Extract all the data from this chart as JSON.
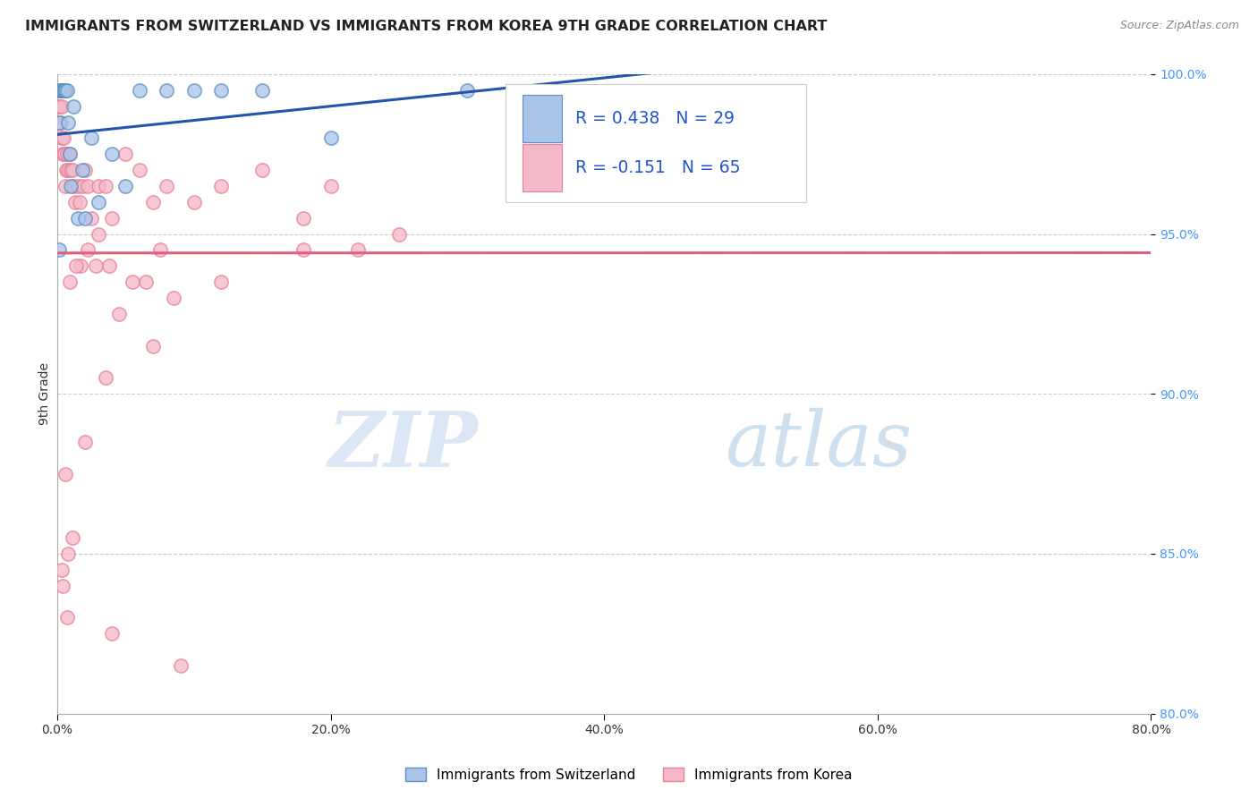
{
  "title": "IMMIGRANTS FROM SWITZERLAND VS IMMIGRANTS FROM KOREA 9TH GRADE CORRELATION CHART",
  "source_text": "Source: ZipAtlas.com",
  "ylabel": "9th Grade",
  "watermark_zip": "ZIP",
  "watermark_atlas": "atlas",
  "xlim": [
    0.0,
    80.0
  ],
  "ylim": [
    80.0,
    100.0
  ],
  "xticks": [
    0.0,
    20.0,
    40.0,
    60.0,
    80.0
  ],
  "yticks": [
    80.0,
    85.0,
    90.0,
    95.0,
    100.0
  ],
  "swiss_color": "#aac4e8",
  "swiss_edge_color": "#5b8ec4",
  "korea_color": "#f5b8c8",
  "korea_edge_color": "#e8809a",
  "swiss_line_color": "#2255aa",
  "korea_line_color": "#e0607a",
  "swiss_R": 0.438,
  "swiss_N": 29,
  "korea_R": -0.151,
  "korea_N": 65,
  "legend_color": "#2255cc",
  "swiss_x": [
    0.1,
    0.15,
    0.2,
    0.25,
    0.3,
    0.35,
    0.4,
    0.5,
    0.55,
    0.6,
    0.7,
    0.8,
    0.9,
    1.0,
    1.2,
    1.5,
    1.8,
    2.0,
    2.5,
    3.0,
    4.0,
    5.0,
    6.0,
    8.0,
    10.0,
    12.0,
    15.0,
    20.0,
    30.0
  ],
  "swiss_y": [
    94.5,
    98.5,
    99.5,
    99.5,
    99.5,
    99.5,
    99.5,
    99.5,
    99.5,
    99.5,
    99.5,
    98.5,
    97.5,
    96.5,
    99.0,
    95.5,
    97.0,
    95.5,
    98.0,
    96.0,
    97.5,
    96.5,
    99.5,
    99.5,
    99.5,
    99.5,
    99.5,
    98.0,
    99.5
  ],
  "korea_x": [
    0.05,
    0.1,
    0.15,
    0.2,
    0.25,
    0.3,
    0.35,
    0.4,
    0.45,
    0.5,
    0.55,
    0.6,
    0.65,
    0.7,
    0.8,
    0.9,
    1.0,
    1.1,
    1.2,
    1.3,
    1.5,
    1.6,
    1.8,
    2.0,
    2.2,
    2.5,
    3.0,
    3.5,
    4.0,
    5.0,
    6.0,
    7.0,
    8.0,
    10.0,
    12.0,
    15.0,
    18.0,
    20.0,
    22.0,
    25.0,
    3.0,
    5.5,
    7.5,
    2.8,
    1.7,
    0.9,
    1.4,
    2.2,
    3.8,
    6.5,
    4.5,
    8.5,
    12.0,
    18.0,
    7.0,
    3.5,
    2.0,
    0.6,
    1.1,
    0.8,
    0.4,
    0.3,
    0.7,
    4.0,
    9.0
  ],
  "korea_y": [
    98.5,
    99.0,
    99.0,
    99.5,
    98.5,
    99.0,
    98.0,
    97.5,
    98.0,
    97.5,
    97.5,
    96.5,
    97.0,
    97.5,
    97.0,
    97.5,
    97.0,
    97.0,
    96.5,
    96.0,
    96.5,
    96.0,
    96.5,
    97.0,
    96.5,
    95.5,
    96.5,
    96.5,
    95.5,
    97.5,
    97.0,
    96.0,
    96.5,
    96.0,
    96.5,
    97.0,
    95.5,
    96.5,
    94.5,
    95.0,
    95.0,
    93.5,
    94.5,
    94.0,
    94.0,
    93.5,
    94.0,
    94.5,
    94.0,
    93.5,
    92.5,
    93.0,
    93.5,
    94.5,
    91.5,
    90.5,
    88.5,
    87.5,
    85.5,
    85.0,
    84.0,
    84.5,
    83.0,
    82.5,
    81.5
  ],
  "background_color": "#ffffff",
  "grid_color": "#cccccc",
  "title_fontsize": 11.5,
  "axis_label_fontsize": 10,
  "tick_fontsize": 10,
  "marker_size": 120
}
